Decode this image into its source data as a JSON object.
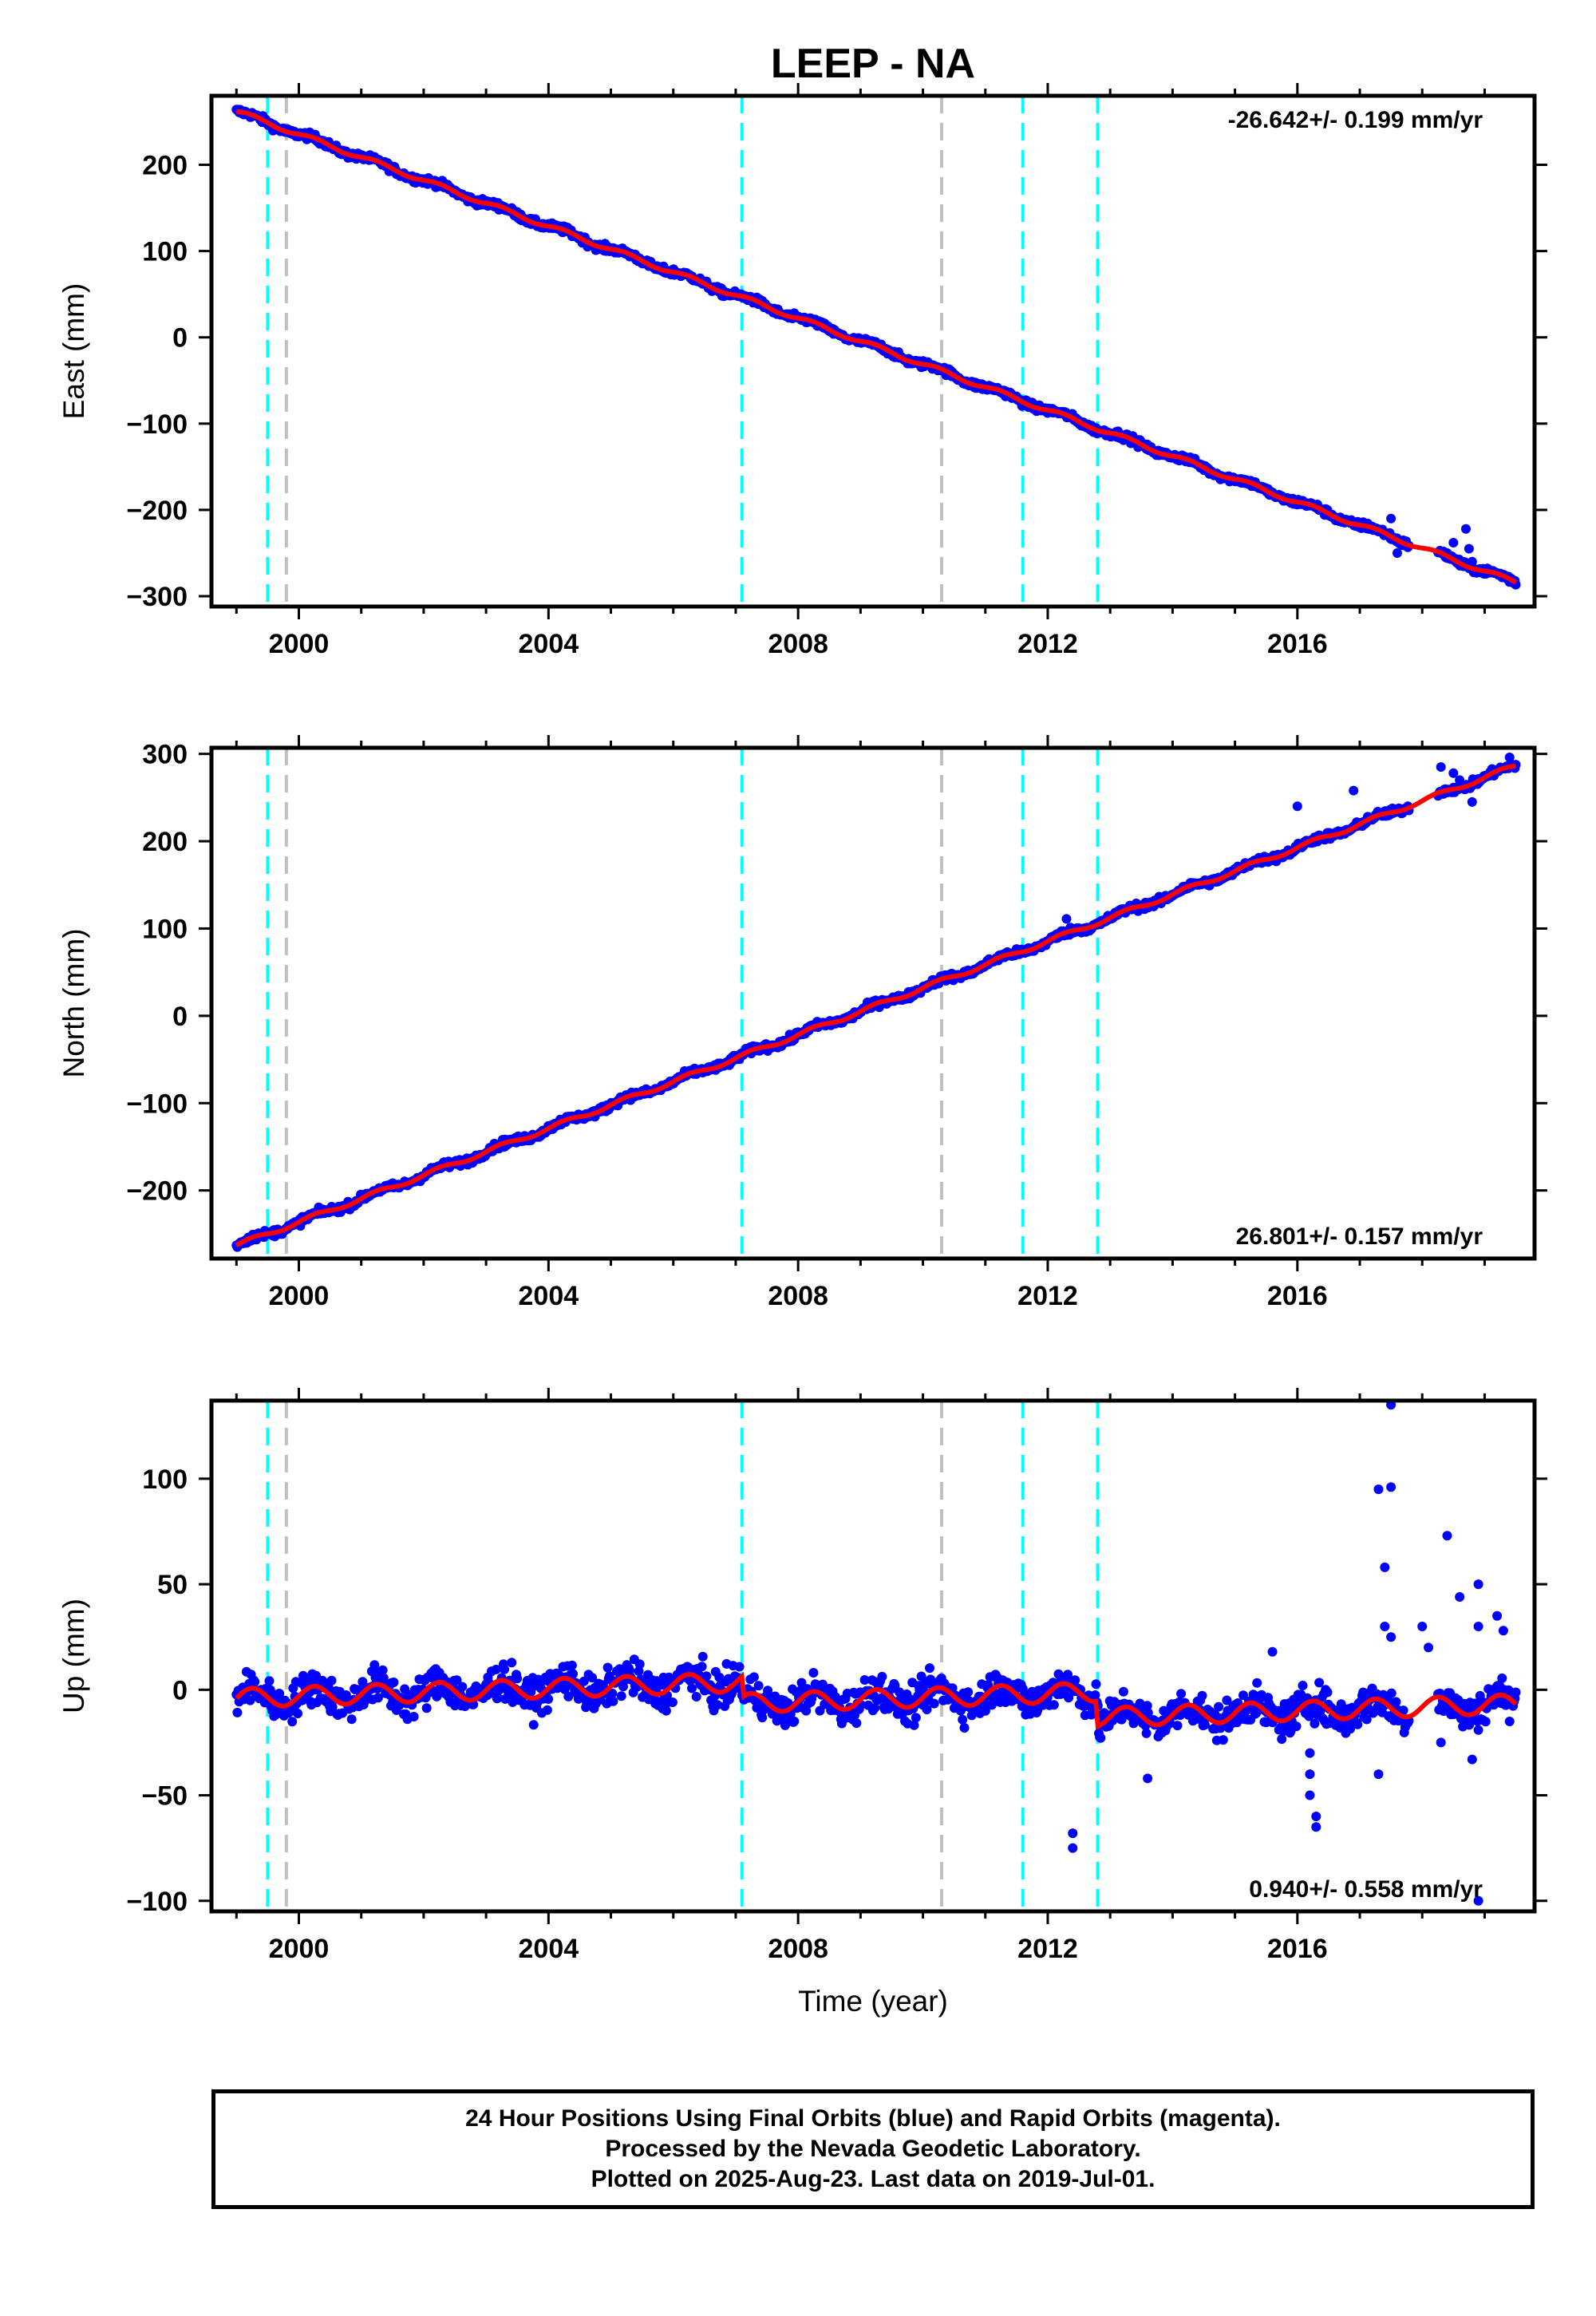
{
  "title": "LEEP - NA",
  "footer": {
    "line1": "24 Hour Positions Using Final Orbits (blue) and Rapid Orbits (magenta).",
    "line2": "Processed by the Nevada Geodetic Laboratory.",
    "line3": "Plotted on 2025-Aug-23. Last data on 2019-Jul-01."
  },
  "colors": {
    "data": "#0000ff",
    "model": "#ff0000",
    "equipment_change": "#00ffff",
    "other_event": "#c0c0c0"
  },
  "chart_data": [
    {
      "type": "scatter",
      "ylabel": "East (mm)",
      "xlabel": "",
      "xlim": [
        1998.6,
        2019.8
      ],
      "ylim": [
        -312,
        280
      ],
      "xticks": [
        2000,
        2004,
        2008,
        2012,
        2016
      ],
      "yticks": [
        200,
        100,
        0,
        -100,
        -200,
        -300
      ],
      "rate_text": "-26.642+/- 0.199 mm/yr",
      "rate_position": "top-right",
      "rate": -26.642,
      "model": {
        "t0": 1999.0,
        "v0": 262,
        "amp": 2.5,
        "extra": []
      },
      "x_range": [
        1999.0,
        2019.5
      ],
      "noise": 3,
      "outliers": [
        [
          2017.3,
          -225
        ],
        [
          2017.5,
          -210
        ],
        [
          2017.6,
          -250
        ],
        [
          2018.4,
          -250
        ],
        [
          2018.5,
          -238
        ],
        [
          2018.7,
          -222
        ],
        [
          2018.75,
          -245
        ],
        [
          2018.8,
          -260
        ]
      ],
      "cyan_lines": [
        1999.5,
        2007.1,
        2011.6,
        2012.8
      ],
      "gray_lines": [
        1999.8,
        2010.3
      ]
    },
    {
      "type": "scatter",
      "ylabel": "North (mm)",
      "xlabel": "",
      "xlim": [
        1998.6,
        2019.8
      ],
      "ylim": [
        -278,
        307
      ],
      "xticks": [
        2000,
        2004,
        2008,
        2012,
        2016
      ],
      "yticks": [
        300,
        200,
        100,
        0,
        -100,
        -200
      ],
      "rate_text": "26.801+/- 0.157 mm/yr",
      "rate_position": "bottom-right",
      "rate": 26.801,
      "model": {
        "t0": 1999.0,
        "v0": -263,
        "amp": 2.5,
        "extra": []
      },
      "x_range": [
        1999.0,
        2019.5
      ],
      "noise": 3,
      "outliers": [
        [
          2012.3,
          111
        ],
        [
          2016.0,
          240
        ],
        [
          2016.9,
          258
        ],
        [
          2018.3,
          285
        ],
        [
          2018.5,
          278
        ],
        [
          2018.6,
          270
        ],
        [
          2018.8,
          245
        ],
        [
          2019.4,
          296
        ]
      ],
      "cyan_lines": [
        1999.5,
        2007.1,
        2011.6,
        2012.8
      ],
      "gray_lines": [
        1999.8,
        2010.3
      ]
    },
    {
      "type": "scatter",
      "ylabel": "Up (mm)",
      "xlabel": "Time (year)",
      "xlim": [
        1998.6,
        2019.8
      ],
      "ylim": [
        -105,
        137
      ],
      "xticks": [
        2000,
        2004,
        2008,
        2012,
        2016
      ],
      "yticks": [
        100,
        50,
        0,
        -50,
        -100
      ],
      "rate_text": "0.940+/- 0.558 mm/yr",
      "rate_position": "bottom-right",
      "rate": 0.94,
      "model": {
        "t0": 1999.0,
        "v0": -4,
        "amp": 4.5,
        "extra": [
          [
            2007.1,
            -10
          ],
          [
            2012.8,
            -12
          ]
        ]
      },
      "x_range": [
        1999.0,
        2019.5
      ],
      "noise": 6,
      "outliers": [
        [
          2012.4,
          -68
        ],
        [
          2012.4,
          -75
        ],
        [
          2013.6,
          -42
        ],
        [
          2016.2,
          -30
        ],
        [
          2016.2,
          -40
        ],
        [
          2016.2,
          -50
        ],
        [
          2016.3,
          -60
        ],
        [
          2016.3,
          -65
        ],
        [
          2015.6,
          18
        ],
        [
          2017.3,
          95
        ],
        [
          2017.5,
          96
        ],
        [
          2017.5,
          135
        ],
        [
          2017.4,
          58
        ],
        [
          2017.4,
          30
        ],
        [
          2017.5,
          25
        ],
        [
          2017.3,
          -40
        ],
        [
          2018.0,
          30
        ],
        [
          2018.1,
          20
        ],
        [
          2018.4,
          73
        ],
        [
          2018.6,
          44
        ],
        [
          2018.9,
          50
        ],
        [
          2018.9,
          30
        ],
        [
          2018.8,
          -33
        ],
        [
          2018.3,
          -25
        ],
        [
          2019.2,
          35
        ],
        [
          2019.3,
          28
        ],
        [
          2019.4,
          -15
        ],
        [
          2018.9,
          -100
        ]
      ],
      "cyan_lines": [
        1999.5,
        2007.1,
        2011.6,
        2012.8
      ],
      "gray_lines": [
        1999.8,
        2010.3
      ]
    }
  ]
}
